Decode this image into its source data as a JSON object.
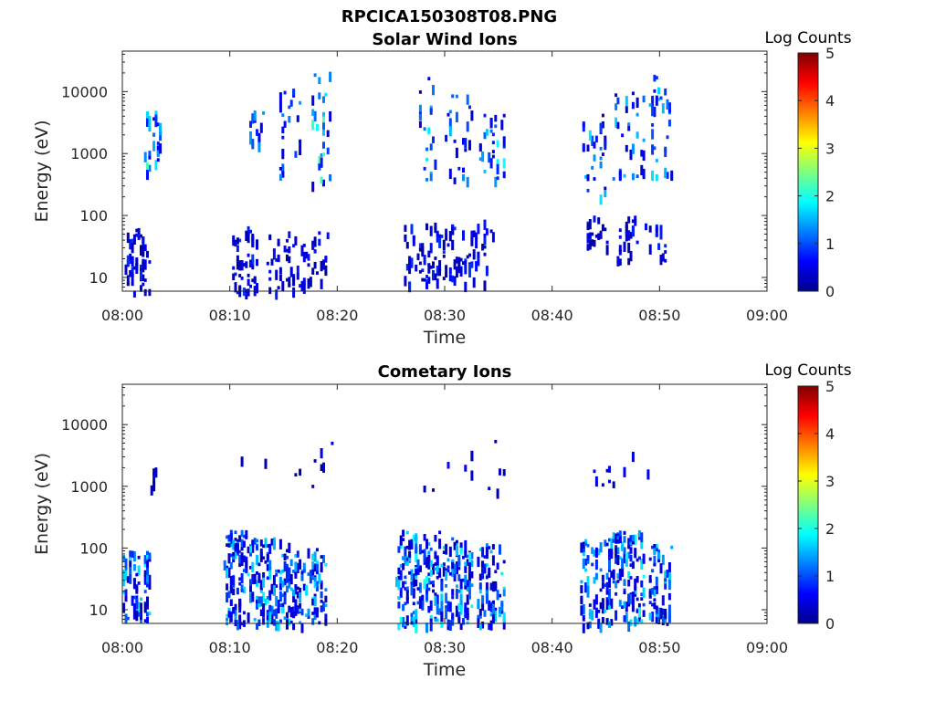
{
  "figure_title": "RPCICA150308T08.PNG",
  "colors": {
    "colormap": "jet",
    "axis": "#262626",
    "background": "#ffffff"
  },
  "chart_data": [
    {
      "type": "heatmap",
      "title": "Solar Wind Ions",
      "xlabel": "Time",
      "ylabel": "Energy (eV)",
      "x_ticks": [
        "08:00",
        "08:10",
        "08:20",
        "08:30",
        "08:40",
        "08:50",
        "09:00"
      ],
      "x_range_minutes": [
        0,
        60
      ],
      "y_scale": "log",
      "y_ticks": [
        "10",
        "100",
        "1000",
        "10000"
      ],
      "ylim": [
        6,
        45000
      ],
      "colorbar": {
        "label": "Log Counts",
        "ticks": [
          "0",
          "1",
          "2",
          "3",
          "4",
          "5"
        ],
        "range": [
          0,
          5
        ]
      },
      "clusters": [
        {
          "t": [
            0.2,
            2.5
          ],
          "e": [
            6,
            70
          ],
          "lvl": [
            0.2,
            0.9
          ],
          "n": 55
        },
        {
          "t": [
            2.0,
            3.5
          ],
          "e": [
            500,
            5000
          ],
          "lvl": [
            0.5,
            2.2
          ],
          "n": 30
        },
        {
          "t": [
            10.2,
            12.5
          ],
          "e": [
            6,
            70
          ],
          "lvl": [
            0.2,
            1.0
          ],
          "n": 50
        },
        {
          "t": [
            11.5,
            13.0
          ],
          "e": [
            1500,
            5000
          ],
          "lvl": [
            0.5,
            1.5
          ],
          "n": 14
        },
        {
          "t": [
            13.5,
            17.0
          ],
          "e": [
            6,
            60
          ],
          "lvl": [
            0.2,
            0.8
          ],
          "n": 50
        },
        {
          "t": [
            14.5,
            16.5
          ],
          "e": [
            400,
            15000
          ],
          "lvl": [
            0.4,
            1.5
          ],
          "n": 25
        },
        {
          "t": [
            17.5,
            19.3
          ],
          "e": [
            300,
            25000
          ],
          "lvl": [
            0.4,
            2.4
          ],
          "n": 28
        },
        {
          "t": [
            17.0,
            19.0
          ],
          "e": [
            8,
            60
          ],
          "lvl": [
            0.2,
            0.8
          ],
          "n": 22
        },
        {
          "t": [
            26.0,
            29.5
          ],
          "e": [
            8,
            80
          ],
          "lvl": [
            0.2,
            0.9
          ],
          "n": 55
        },
        {
          "t": [
            27.5,
            29.0
          ],
          "e": [
            400,
            20000
          ],
          "lvl": [
            0.4,
            1.8
          ],
          "n": 20
        },
        {
          "t": [
            29.5,
            32.5
          ],
          "e": [
            8,
            90
          ],
          "lvl": [
            0.2,
            0.9
          ],
          "n": 45
        },
        {
          "t": [
            30.0,
            32.5
          ],
          "e": [
            400,
            10000
          ],
          "lvl": [
            0.4,
            1.6
          ],
          "n": 25
        },
        {
          "t": [
            33.0,
            35.5
          ],
          "e": [
            400,
            5000
          ],
          "lvl": [
            0.5,
            2.0
          ],
          "n": 30
        },
        {
          "t": [
            32.5,
            34.5
          ],
          "e": [
            8,
            100
          ],
          "lvl": [
            0.2,
            0.8
          ],
          "n": 20
        },
        {
          "t": [
            43.0,
            45.0
          ],
          "e": [
            30,
            100
          ],
          "lvl": [
            0.2,
            0.8
          ],
          "n": 20
        },
        {
          "t": [
            42.5,
            45.0
          ],
          "e": [
            200,
            5000
          ],
          "lvl": [
            0.4,
            1.8
          ],
          "n": 28
        },
        {
          "t": [
            46.0,
            48.0
          ],
          "e": [
            20,
            100
          ],
          "lvl": [
            0.2,
            0.8
          ],
          "n": 25
        },
        {
          "t": [
            45.5,
            48.5
          ],
          "e": [
            400,
            10000
          ],
          "lvl": [
            0.4,
            1.8
          ],
          "n": 30
        },
        {
          "t": [
            49.0,
            51.0
          ],
          "e": [
            300,
            20000
          ],
          "lvl": [
            0.4,
            1.8
          ],
          "n": 30
        },
        {
          "t": [
            48.5,
            50.5
          ],
          "e": [
            12,
            100
          ],
          "lvl": [
            0.2,
            0.8
          ],
          "n": 15
        }
      ]
    },
    {
      "type": "heatmap",
      "title": "Cometary Ions",
      "xlabel": "Time",
      "ylabel": "Energy (eV)",
      "x_ticks": [
        "08:00",
        "08:10",
        "08:20",
        "08:30",
        "08:40",
        "08:50",
        "09:00"
      ],
      "x_range_minutes": [
        0,
        60
      ],
      "y_scale": "log",
      "y_ticks": [
        "10",
        "100",
        "1000",
        "10000"
      ],
      "ylim": [
        6,
        45000
      ],
      "colorbar": {
        "label": "Log Counts",
        "ticks": [
          "0",
          "1",
          "2",
          "3",
          "4",
          "5"
        ],
        "range": [
          0,
          5
        ]
      },
      "clusters": [
        {
          "t": [
            0.0,
            2.5
          ],
          "e": [
            6,
            100
          ],
          "lvl": [
            0.2,
            1.8
          ],
          "n": 80
        },
        {
          "t": [
            2.0,
            3.5
          ],
          "e": [
            900,
            3000
          ],
          "lvl": [
            0.2,
            0.6
          ],
          "n": 5
        },
        {
          "t": [
            9.5,
            12.5
          ],
          "e": [
            6,
            200
          ],
          "lvl": [
            0.3,
            1.9
          ],
          "n": 130
        },
        {
          "t": [
            12.5,
            15.5
          ],
          "e": [
            6,
            150
          ],
          "lvl": [
            0.3,
            1.9
          ],
          "n": 110
        },
        {
          "t": [
            15.5,
            19.0
          ],
          "e": [
            6,
            100
          ],
          "lvl": [
            0.3,
            1.8
          ],
          "n": 100
        },
        {
          "t": [
            11.0,
            19.5
          ],
          "e": [
            800,
            6000
          ],
          "lvl": [
            0.2,
            0.6
          ],
          "n": 10
        },
        {
          "t": [
            25.5,
            29.5
          ],
          "e": [
            6,
            200
          ],
          "lvl": [
            0.3,
            2.0
          ],
          "n": 150
        },
        {
          "t": [
            29.5,
            32.5
          ],
          "e": [
            6,
            150
          ],
          "lvl": [
            0.3,
            2.0
          ],
          "n": 120
        },
        {
          "t": [
            33.0,
            35.5
          ],
          "e": [
            6,
            120
          ],
          "lvl": [
            0.3,
            1.8
          ],
          "n": 80
        },
        {
          "t": [
            28.0,
            35.5
          ],
          "e": [
            500,
            8000
          ],
          "lvl": [
            0.2,
            0.7
          ],
          "n": 12
        },
        {
          "t": [
            42.5,
            45.5
          ],
          "e": [
            6,
            150
          ],
          "lvl": [
            0.3,
            1.8
          ],
          "n": 90
        },
        {
          "t": [
            45.5,
            48.5
          ],
          "e": [
            6,
            200
          ],
          "lvl": [
            0.3,
            2.0
          ],
          "n": 110
        },
        {
          "t": [
            49.0,
            51.0
          ],
          "e": [
            6,
            120
          ],
          "lvl": [
            0.3,
            1.8
          ],
          "n": 70
        },
        {
          "t": [
            43.5,
            51.0
          ],
          "e": [
            600,
            6000
          ],
          "lvl": [
            0.2,
            0.7
          ],
          "n": 10
        }
      ]
    }
  ]
}
